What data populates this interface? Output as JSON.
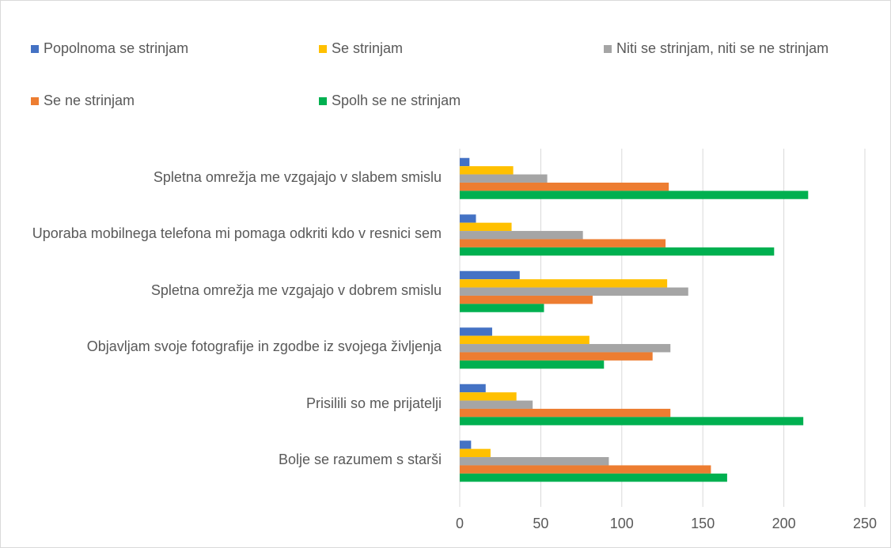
{
  "chart_data": {
    "type": "bar",
    "orientation": "horizontal",
    "categories": [
      "Spletna omrežja me vzgajajo v slabem smislu",
      "Uporaba mobilnega telefona mi pomaga odkriti kdo v resnici sem",
      "Spletna omrežja me vzgajajo v dobrem smislu",
      "Objavljam svoje fotografije in zgodbe iz svojega življenja",
      "Prisilili so me prijatelji",
      "Bolje se razumem s starši"
    ],
    "series": [
      {
        "name": "Popolnoma se strinjam",
        "color": "#4472c4",
        "values": [
          6,
          10,
          37,
          20,
          16,
          7
        ]
      },
      {
        "name": "Se strinjam",
        "color": "#ffc000",
        "values": [
          33,
          32,
          128,
          80,
          35,
          19
        ]
      },
      {
        "name": "Niti se strinjam, niti se ne strinjam",
        "color": "#a5a5a5",
        "values": [
          54,
          76,
          141,
          130,
          45,
          92
        ]
      },
      {
        "name": "Se ne strinjam",
        "color": "#ed7d31",
        "values": [
          129,
          127,
          82,
          119,
          130,
          155
        ]
      },
      {
        "name": "Spolh se ne strinjam",
        "color": "#00b050",
        "values": [
          215,
          194,
          52,
          89,
          212,
          165
        ]
      }
    ],
    "xlim": [
      0,
      250
    ],
    "xticks": [
      0,
      50,
      100,
      150,
      200,
      250
    ],
    "grid": true,
    "legend": "top"
  }
}
